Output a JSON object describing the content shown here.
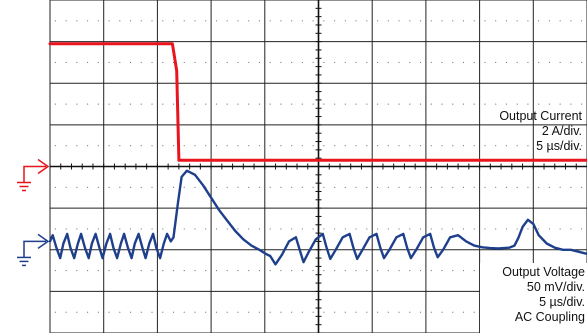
{
  "chart_data": {
    "type": "line",
    "title": "",
    "xlabel": "",
    "ylabel": "",
    "grid": true,
    "time_divisions": 10,
    "amplitude_divisions": 8,
    "series": [
      {
        "name": "Output Current",
        "color": "#e8141e",
        "scale_label": "2 A/div.",
        "time_label": "5 µs/div.",
        "coupling_label": "",
        "ground_marker_div": 4.0,
        "x_div": [
          0,
          2.28,
          2.36,
          2.4,
          10
        ],
        "y_div": [
          6.95,
          6.95,
          6.3,
          4.15,
          4.15
        ]
      },
      {
        "name": "Output Voltage",
        "color": "#1e3f8c",
        "scale_label": "50 mV/div.",
        "time_label": "5 µs/div.",
        "coupling_label": "AC Coupling",
        "ground_marker_div": 2.2,
        "x_div": [
          0,
          0.05,
          0.12,
          0.19,
          0.25,
          0.32,
          0.38,
          0.45,
          0.52,
          0.58,
          0.65,
          0.72,
          0.78,
          0.85,
          0.92,
          0.98,
          1.05,
          1.12,
          1.18,
          1.25,
          1.32,
          1.38,
          1.45,
          1.52,
          1.58,
          1.65,
          1.72,
          1.78,
          1.85,
          1.92,
          1.98,
          2.05,
          2.12,
          2.18,
          2.25,
          2.3,
          2.38,
          2.45,
          2.55,
          2.7,
          2.85,
          3.0,
          3.15,
          3.3,
          3.45,
          3.6,
          3.75,
          3.9,
          4.02,
          4.1,
          4.2,
          4.32,
          4.45,
          4.58,
          4.65,
          4.72,
          4.82,
          4.95,
          5.08,
          5.15,
          5.22,
          5.32,
          5.45,
          5.58,
          5.65,
          5.72,
          5.82,
          5.95,
          6.08,
          6.15,
          6.22,
          6.32,
          6.45,
          6.58,
          6.65,
          6.72,
          6.82,
          6.95,
          7.08,
          7.15,
          7.22,
          7.32,
          7.45,
          7.6,
          7.75,
          7.9,
          8.05,
          8.2,
          8.35,
          8.45,
          8.55,
          8.65,
          8.72,
          8.8,
          8.9,
          9.0,
          9.1,
          9.25,
          9.4,
          9.55,
          9.7,
          9.85,
          10
        ],
        "y_div": [
          2.2,
          2.35,
          2.05,
          1.8,
          2.15,
          2.38,
          2.05,
          1.8,
          2.15,
          2.38,
          2.05,
          1.8,
          2.15,
          2.38,
          2.05,
          1.8,
          2.15,
          2.38,
          2.05,
          1.8,
          2.15,
          2.38,
          2.05,
          1.8,
          2.15,
          2.38,
          2.05,
          1.8,
          2.15,
          2.38,
          2.05,
          1.8,
          2.15,
          2.38,
          2.2,
          2.3,
          3.1,
          3.75,
          3.9,
          3.8,
          3.55,
          3.25,
          2.95,
          2.7,
          2.45,
          2.25,
          2.1,
          2.0,
          1.9,
          1.85,
          1.65,
          1.88,
          2.2,
          2.3,
          2.0,
          1.7,
          1.95,
          2.25,
          2.38,
          2.05,
          1.78,
          2.0,
          2.3,
          2.38,
          2.05,
          1.78,
          2.0,
          2.3,
          2.38,
          2.05,
          1.8,
          2.0,
          2.3,
          2.38,
          2.05,
          1.8,
          2.0,
          2.3,
          2.38,
          2.05,
          1.82,
          2.0,
          2.3,
          2.35,
          2.2,
          2.1,
          2.06,
          2.04,
          2.03,
          2.04,
          2.05,
          2.1,
          2.28,
          2.55,
          2.72,
          2.62,
          2.35,
          2.15,
          2.05,
          2.0,
          2.0,
          1.95,
          1.9
        ]
      }
    ]
  }
}
